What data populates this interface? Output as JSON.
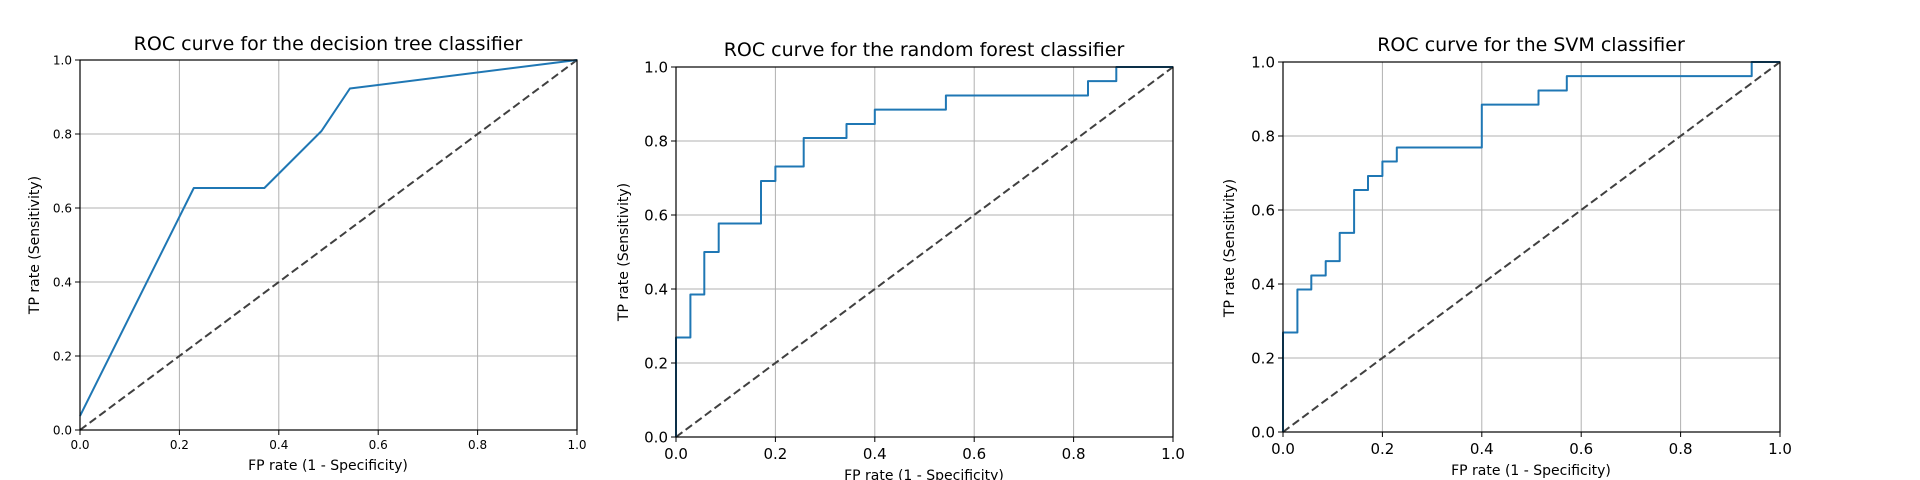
{
  "colors": {
    "roc_line": "#1f77b4",
    "chance_line": "#404040",
    "grid": "#b0b0b0"
  },
  "chart_data": [
    {
      "type": "line",
      "title": "ROC curve for the decision tree classifier",
      "xlabel": "FP rate (1 - Specificity)",
      "ylabel": "TP rate (Sensitivity)",
      "xlim": [
        0,
        1
      ],
      "ylim": [
        0,
        1
      ],
      "xticks": [
        "0.0",
        "0.2",
        "0.4",
        "0.6",
        "0.8",
        "1.0"
      ],
      "yticks": [
        "0.0",
        "0.2",
        "0.4",
        "0.6",
        "0.8",
        "1.0"
      ],
      "grid": true,
      "series": [
        {
          "x": [
            0.0,
            0.229,
            0.371,
            0.486,
            0.543,
            1.0
          ],
          "y": [
            0.038,
            0.654,
            0.654,
            0.808,
            0.923,
            1.0
          ]
        }
      ],
      "reference_line": {
        "x": [
          0,
          1
        ],
        "y": [
          0,
          1
        ],
        "style": "dashed"
      }
    },
    {
      "type": "line",
      "title": "ROC curve for the random forest classifier",
      "xlabel": "FP rate (1 - Specificity)",
      "ylabel": "TP rate (Sensitivity)",
      "xlim": [
        0,
        1
      ],
      "ylim": [
        0,
        1
      ],
      "xticks": [
        "0.0",
        "0.2",
        "0.4",
        "0.6",
        "0.8",
        "1.0"
      ],
      "yticks": [
        "0.0",
        "0.2",
        "0.4",
        "0.6",
        "0.8",
        "1.0"
      ],
      "grid": true,
      "series": [
        {
          "x": [
            0.0,
            0.0,
            0.029,
            0.029,
            0.057,
            0.057,
            0.086,
            0.086,
            0.171,
            0.171,
            0.2,
            0.2,
            0.257,
            0.257,
            0.343,
            0.343,
            0.4,
            0.4,
            0.543,
            0.543,
            0.829,
            0.829,
            0.886,
            0.886,
            1.0
          ],
          "y": [
            0.0,
            0.269,
            0.269,
            0.385,
            0.385,
            0.5,
            0.5,
            0.577,
            0.577,
            0.692,
            0.692,
            0.731,
            0.731,
            0.808,
            0.808,
            0.846,
            0.846,
            0.885,
            0.885,
            0.923,
            0.923,
            0.962,
            0.962,
            1.0,
            1.0
          ]
        }
      ],
      "reference_line": {
        "x": [
          0,
          1
        ],
        "y": [
          0,
          1
        ],
        "style": "dashed"
      }
    },
    {
      "type": "line",
      "title": "ROC curve for the SVM classifier",
      "xlabel": "FP rate (1 - Specificity)",
      "ylabel": "TP rate (Sensitivity)",
      "xlim": [
        0,
        1
      ],
      "ylim": [
        0,
        1
      ],
      "xticks": [
        "0.0",
        "0.2",
        "0.4",
        "0.6",
        "0.8",
        "1.0"
      ],
      "yticks": [
        "0.0",
        "0.2",
        "0.4",
        "0.6",
        "0.8",
        "1.0"
      ],
      "grid": true,
      "series": [
        {
          "x": [
            0.0,
            0.0,
            0.029,
            0.029,
            0.057,
            0.057,
            0.086,
            0.086,
            0.114,
            0.114,
            0.143,
            0.143,
            0.171,
            0.171,
            0.2,
            0.2,
            0.229,
            0.229,
            0.4,
            0.4,
            0.514,
            0.514,
            0.571,
            0.571,
            0.943,
            0.943,
            1.0
          ],
          "y": [
            0.0,
            0.269,
            0.269,
            0.385,
            0.385,
            0.423,
            0.423,
            0.462,
            0.462,
            0.538,
            0.538,
            0.654,
            0.654,
            0.692,
            0.692,
            0.731,
            0.731,
            0.769,
            0.769,
            0.885,
            0.885,
            0.923,
            0.923,
            0.962,
            0.962,
            1.0,
            1.0
          ]
        }
      ],
      "reference_line": {
        "x": [
          0,
          1
        ],
        "y": [
          0,
          1
        ],
        "style": "dashed"
      }
    }
  ]
}
